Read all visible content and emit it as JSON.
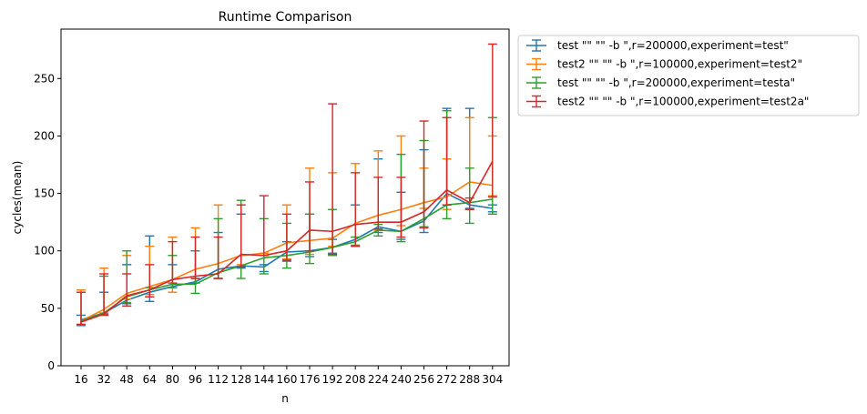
{
  "chart_data": {
    "type": "line",
    "title": "Runtime Comparison",
    "xlabel": "n",
    "ylabel": "cycles(mean)",
    "ylim": [
      0,
      293
    ],
    "yticks": [
      0,
      50,
      100,
      150,
      200,
      250
    ],
    "categories": [
      "16",
      "32",
      "48",
      "64",
      "80",
      "96",
      "112",
      "128",
      "144",
      "160",
      "176",
      "192",
      "208",
      "224",
      "240",
      "256",
      "272",
      "288",
      "304"
    ],
    "grid": false,
    "legend_position": "outside-top-right",
    "series": [
      {
        "name": "test \"\"  \"\" -b \",r=200000,experiment=test\"",
        "color": "#1f77b4",
        "values": [
          40,
          46,
          57,
          64,
          69,
          73,
          84,
          87,
          86,
          99,
          100,
          103,
          110,
          121,
          117,
          126,
          150,
          140,
          137
        ],
        "err_low": [
          35,
          45,
          54,
          56,
          68,
          72,
          76,
          85,
          82,
          91,
          95,
          98,
          104,
          116,
          110,
          116,
          140,
          137,
          134
        ],
        "err_high": [
          44,
          64,
          88,
          113,
          88,
          100,
          116,
          132,
          88,
          108,
          132,
          110,
          140,
          180,
          151,
          188,
          224,
          224,
          140
        ]
      },
      {
        "name": "test2 \"\"  \"\" -b \",r=100000,experiment=test2\"",
        "color": "#ff7f0e",
        "values": [
          39,
          49,
          63,
          69,
          75,
          84,
          89,
          96,
          98,
          107,
          109,
          111,
          124,
          131,
          136,
          142,
          147,
          160,
          157
        ],
        "err_low": [
          36,
          46,
          58,
          62,
          64,
          76,
          76,
          88,
          96,
          93,
          97,
          104,
          112,
          118,
          122,
          137,
          136,
          136,
          148
        ],
        "err_high": [
          66,
          85,
          96,
          104,
          112,
          120,
          140,
          140,
          98,
          140,
          172,
          168,
          176,
          187,
          200,
          172,
          180,
          216,
          200
        ]
      },
      {
        "name": "test \"\"  \"\" -b \",r=200000,experiment=testa\"",
        "color": "#2ca02c",
        "values": [
          39,
          46,
          60,
          66,
          71,
          71,
          81,
          87,
          94,
          96,
          99,
          103,
          108,
          118,
          117,
          128,
          140,
          142,
          145
        ],
        "err_low": [
          36,
          44,
          55,
          60,
          68,
          63,
          76,
          76,
          80,
          85,
          89,
          96,
          105,
          113,
          108,
          121,
          128,
          124,
          132
        ],
        "err_high": [
          64,
          78,
          100,
          68,
          96,
          76,
          128,
          144,
          128,
          124,
          132,
          136,
          112,
          123,
          184,
          196,
          222,
          172,
          216
        ]
      },
      {
        "name": "test2 \"\"  \"\" -b \",r=100000,experiment=test2a\"",
        "color": "#d62728",
        "values": [
          38,
          45,
          61,
          66,
          75,
          78,
          80,
          97,
          96,
          100,
          118,
          117,
          123,
          125,
          125,
          134,
          153,
          142,
          178
        ],
        "err_low": [
          36,
          44,
          52,
          60,
          72,
          76,
          76,
          86,
          96,
          92,
          100,
          97,
          104,
          119,
          112,
          120,
          140,
          136,
          147
        ],
        "err_high": [
          64,
          80,
          80,
          88,
          108,
          112,
          112,
          140,
          148,
          132,
          160,
          228,
          168,
          164,
          164,
          213,
          216,
          146,
          280
        ]
      }
    ]
  }
}
